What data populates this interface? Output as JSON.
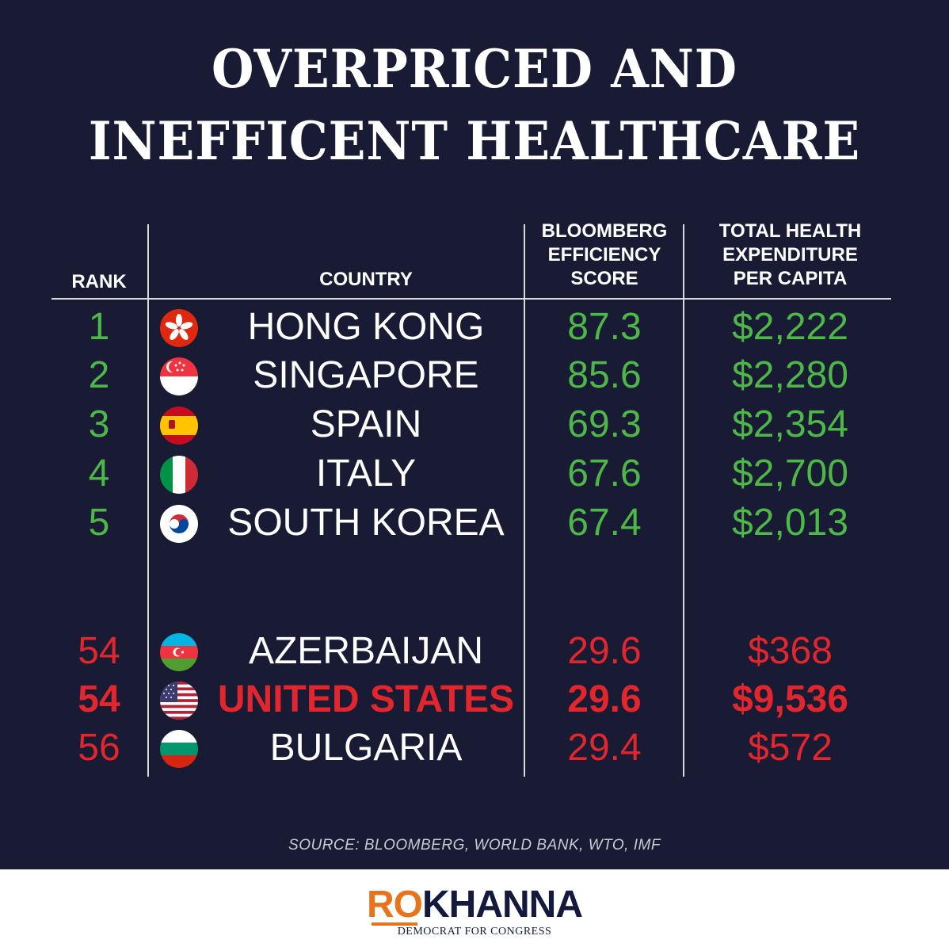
{
  "title": {
    "line1": "OVERPRICED AND",
    "line2": "INEFFICENT HEALTHCARE"
  },
  "headers": {
    "rank": "RANK",
    "country": "COUNTRY",
    "score": "BLOOMBERG\nEFFICIENCY\nSCORE",
    "spend": "TOTAL HEALTH\nEXPENDITURE\nPER CAPITA"
  },
  "chart_data": {
    "type": "table",
    "columns": [
      "RANK",
      "COUNTRY",
      "BLOOMBERG EFFICIENCY SCORE",
      "TOTAL HEALTH EXPENDITURE PER CAPITA"
    ],
    "rows": [
      {
        "rank": "1",
        "country": "HONG KONG",
        "score": "87.3",
        "spend": "$2,222",
        "flag": "hong-kong-flag-icon",
        "tone": "green"
      },
      {
        "rank": "2",
        "country": "SINGAPORE",
        "score": "85.6",
        "spend": "$2,280",
        "flag": "singapore-flag-icon",
        "tone": "green"
      },
      {
        "rank": "3",
        "country": "SPAIN",
        "score": "69.3",
        "spend": "$2,354",
        "flag": "spain-flag-icon",
        "tone": "green"
      },
      {
        "rank": "4",
        "country": "ITALY",
        "score": "67.6",
        "spend": "$2,700",
        "flag": "italy-flag-icon",
        "tone": "green"
      },
      {
        "rank": "5",
        "country": "SOUTH KOREA",
        "score": "67.4",
        "spend": "$2,013",
        "flag": "south-korea-flag-icon",
        "tone": "green"
      },
      {
        "rank": "54",
        "country": "AZERBAIJAN",
        "score": "29.6",
        "spend": "$368",
        "flag": "azerbaijan-flag-icon",
        "tone": "red"
      },
      {
        "rank": "54",
        "country": "UNITED STATES",
        "score": "29.6",
        "spend": "$9,536",
        "flag": "united-states-flag-icon",
        "tone": "red",
        "highlight": true
      },
      {
        "rank": "56",
        "country": "BULGARIA",
        "score": "29.4",
        "spend": "$572",
        "flag": "bulgaria-flag-icon",
        "tone": "red"
      }
    ]
  },
  "colors": {
    "background": "#181b33",
    "good": "#4db848",
    "bad": "#e1262d",
    "logo_accent": "#e8731d",
    "logo_dark": "#141a3d"
  },
  "source": "SOURCE: BLOOMBERG,  WORLD BANK, WTO, IMF",
  "logo": {
    "first": "RO",
    "last": "KHANNA",
    "tagline": "DEMOCRAT FOR CONGRESS"
  }
}
